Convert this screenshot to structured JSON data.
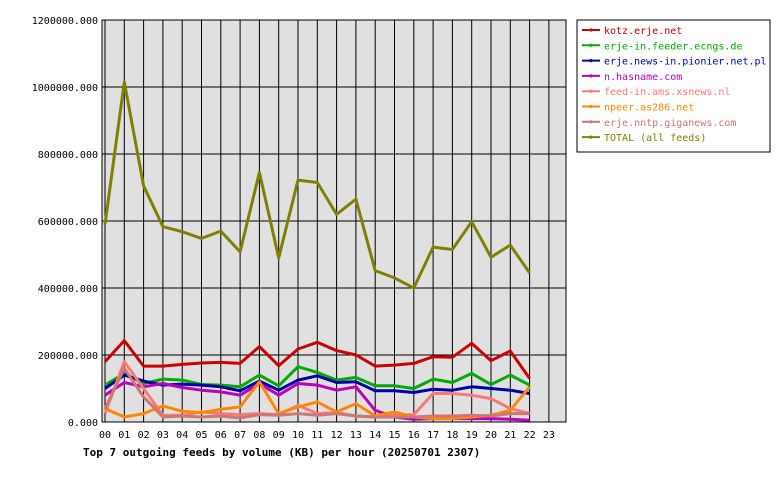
{
  "chart_data": {
    "type": "line",
    "title": "Top 7 outgoing feeds by volume (KB) per hour (20250701 2307)",
    "xlabel": "",
    "ylabel": "",
    "categories": [
      "00",
      "01",
      "02",
      "03",
      "04",
      "05",
      "06",
      "07",
      "08",
      "09",
      "10",
      "11",
      "12",
      "13",
      "14",
      "15",
      "16",
      "17",
      "18",
      "19",
      "20",
      "21",
      "22",
      "23"
    ],
    "ylim": [
      0,
      1200000
    ],
    "yticks": [
      "0.000",
      "200000.000",
      "400000.000",
      "600000.000",
      "800000.000",
      "1000000.000",
      "1200000.000"
    ],
    "grid": true,
    "plot_background": "#e0e0e0",
    "legend_position": "top-right",
    "series": [
      {
        "name": "kotz.erje.net",
        "color": "#cc0000",
        "values": [
          180000,
          243000,
          167000,
          167000,
          172000,
          176000,
          178000,
          175000,
          225000,
          168000,
          218000,
          238000,
          213000,
          200000,
          167000,
          170000,
          175000,
          195000,
          193000,
          235000,
          183000,
          212000,
          130000,
          null
        ]
      },
      {
        "name": "erje-in.feeder.ecngs.de",
        "color": "#00aa00",
        "values": [
          110000,
          145000,
          115000,
          128000,
          125000,
          112000,
          110000,
          105000,
          140000,
          108000,
          165000,
          148000,
          125000,
          133000,
          108000,
          108000,
          100000,
          128000,
          118000,
          145000,
          112000,
          140000,
          110000,
          null
        ]
      },
      {
        "name": "erje.news-in.pionier.net.pl",
        "color": "#0000aa",
        "values": [
          100000,
          140000,
          122000,
          110000,
          113000,
          110000,
          105000,
          93000,
          122000,
          95000,
          125000,
          138000,
          118000,
          120000,
          93000,
          93000,
          88000,
          98000,
          95000,
          105000,
          100000,
          95000,
          85000,
          null
        ]
      },
      {
        "name": "n.hasname.com",
        "color": "#bb00bb",
        "values": [
          80000,
          118000,
          105000,
          115000,
          103000,
          95000,
          90000,
          80000,
          115000,
          80000,
          115000,
          110000,
          95000,
          105000,
          35000,
          15000,
          8000,
          10000,
          10000,
          10000,
          10000,
          8000,
          5000,
          null
        ]
      },
      {
        "name": "feed-in.ams.xsnews.nl",
        "color": "#ff7777",
        "values": [
          25000,
          180000,
          100000,
          20000,
          20000,
          30000,
          25000,
          22000,
          25000,
          22000,
          50000,
          25000,
          28000,
          18000,
          15000,
          20000,
          22000,
          85000,
          85000,
          80000,
          70000,
          40000,
          25000,
          null
        ]
      },
      {
        "name": "npeer.as286.net",
        "color": "#ff8800",
        "values": [
          40000,
          15000,
          25000,
          48000,
          32000,
          28000,
          38000,
          45000,
          120000,
          25000,
          45000,
          60000,
          30000,
          55000,
          18000,
          30000,
          15000,
          10000,
          10000,
          15000,
          20000,
          35000,
          105000,
          null
        ]
      },
      {
        "name": "erje.nntp.giganews.com",
        "color": "#cc7777",
        "values": [
          40000,
          160000,
          75000,
          15000,
          18000,
          15000,
          18000,
          12000,
          22000,
          20000,
          25000,
          20000,
          25000,
          18000,
          15000,
          15000,
          15000,
          18000,
          18000,
          20000,
          18000,
          25000,
          25000,
          null
        ]
      },
      {
        "name": "TOTAL (all feeds)",
        "color": "#808000",
        "values": [
          590000,
          1015000,
          705000,
          583000,
          568000,
          548000,
          570000,
          508000,
          745000,
          490000,
          722000,
          715000,
          620000,
          665000,
          452000,
          430000,
          400000,
          522000,
          515000,
          598000,
          492000,
          528000,
          445000,
          null
        ]
      }
    ]
  }
}
